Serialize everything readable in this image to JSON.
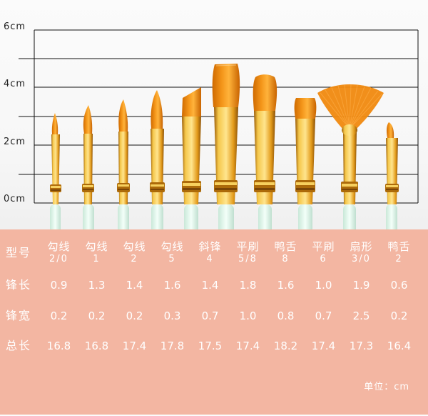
{
  "scale": {
    "labels": [
      "6cm",
      "4cm",
      "2cm",
      "0cm"
    ]
  },
  "table": {
    "row_labels": {
      "type": "型号",
      "blade_length": "锋长",
      "blade_width": "锋宽",
      "total_length": "总长"
    },
    "columns": [
      {
        "name": "勾线",
        "size": "2/0",
        "blade_length": "0.9",
        "blade_width": "0.2",
        "total_length": "16.8"
      },
      {
        "name": "勾线",
        "size": "1",
        "blade_length": "1.3",
        "blade_width": "0.2",
        "total_length": "16.8"
      },
      {
        "name": "勾线",
        "size": "2",
        "blade_length": "1.4",
        "blade_width": "0.2",
        "total_length": "17.4"
      },
      {
        "name": "勾线",
        "size": "5",
        "blade_length": "1.6",
        "blade_width": "0.3",
        "total_length": "17.8"
      },
      {
        "name": "斜锋",
        "size": "4",
        "blade_length": "1.4",
        "blade_width": "0.7",
        "total_length": "17.5"
      },
      {
        "name": "平刷",
        "size": "5/8",
        "blade_length": "1.8",
        "blade_width": "1.0",
        "total_length": "17.4"
      },
      {
        "name": "鸭舌",
        "size": "8",
        "blade_length": "1.6",
        "blade_width": "0.8",
        "total_length": "18.2"
      },
      {
        "name": "平刷",
        "size": "6",
        "blade_length": "1.0",
        "blade_width": "0.7",
        "total_length": "17.4"
      },
      {
        "name": "扇形",
        "size": "3/0",
        "blade_length": "1.9",
        "blade_width": "2.5",
        "total_length": "17.3"
      },
      {
        "name": "鸭舌",
        "size": "2",
        "blade_length": "0.6",
        "blade_width": "0.2",
        "total_length": "16.4"
      }
    ],
    "unit": "单位：cm"
  },
  "colors": {
    "pink": "#f3b6a2",
    "gold": "#e3a221",
    "bristle": "#f08a12",
    "handle": "#def2e6"
  },
  "icons": {
    "brushes": "paintbrush-icon"
  }
}
